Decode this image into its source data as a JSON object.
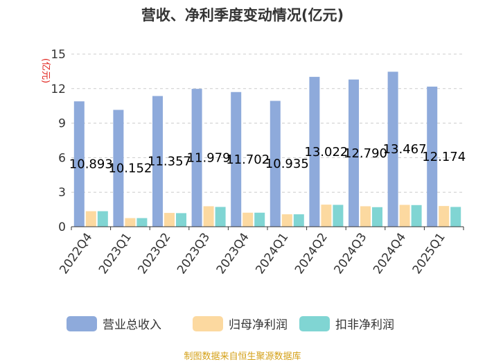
{
  "chart_data": {
    "type": "bar",
    "title": "营收、净利季度变动情况(亿元)",
    "unit_label": "(亿元)",
    "categories": [
      "2022Q4",
      "2023Q1",
      "2023Q2",
      "2023Q3",
      "2023Q4",
      "2024Q1",
      "2024Q2",
      "2024Q3",
      "2024Q4",
      "2025Q1"
    ],
    "series": [
      {
        "name": "营业总收入",
        "color": "#8eaadb",
        "values": [
          10.893,
          10.152,
          11.357,
          11.979,
          11.702,
          10.935,
          13.022,
          12.79,
          13.467,
          12.174
        ],
        "data_labels": [
          "10.893",
          "10.152",
          "11.357",
          "11.979",
          "11.702",
          "10.935",
          "13.022",
          "12.790",
          "13.467",
          "12.174"
        ]
      },
      {
        "name": "归母净利润",
        "color": "#fcd9a0",
        "values": [
          1.35,
          0.75,
          1.2,
          1.78,
          1.22,
          1.08,
          1.92,
          1.78,
          1.9,
          1.8
        ]
      },
      {
        "name": "扣非净利润",
        "color": "#80d5d3",
        "values": [
          1.35,
          0.75,
          1.18,
          1.72,
          1.22,
          1.08,
          1.9,
          1.7,
          1.88,
          1.72
        ]
      }
    ],
    "ylim": [
      0,
      15
    ],
    "yticks": [
      "0",
      "3",
      "6",
      "9",
      "12",
      "15"
    ],
    "grid": true,
    "legend_position": "bottom"
  },
  "source": "制图数据来自恒生聚源数据库"
}
